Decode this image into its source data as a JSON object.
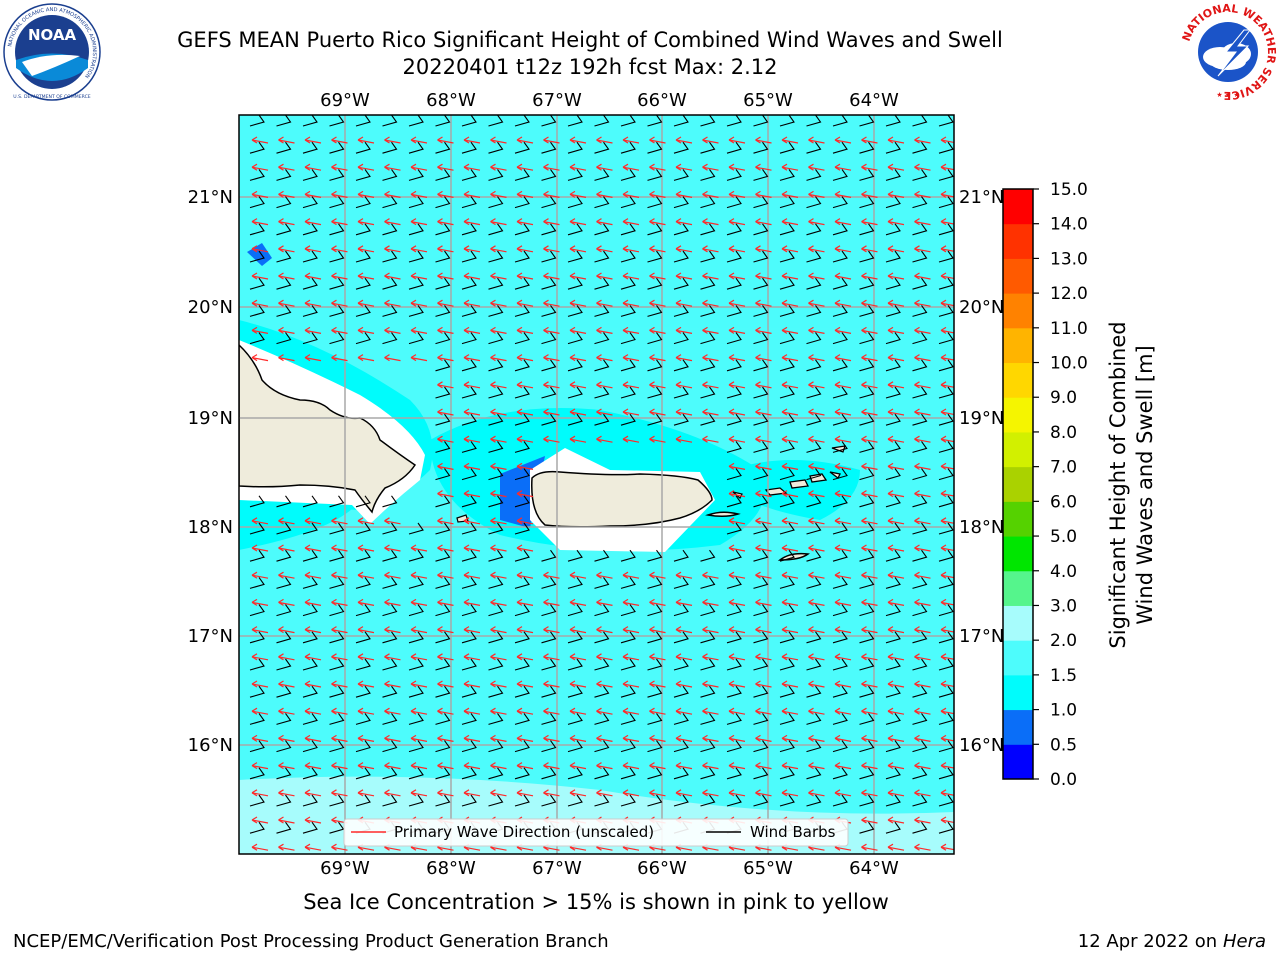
{
  "header": {
    "title_line1": "GEFS MEAN Puerto Rico Significant Height of Combined Wind Waves and Swell",
    "title_line2": "20220401 t12z 192h fcst   Max: 2.12"
  },
  "logos": {
    "left_ring_text": "NATIONAL OCEANIC AND ATMOSPHERIC ADMINISTRATION",
    "left_bottom_text": "U.S. DEPARTMENT OF COMMERCE",
    "left_center": "NOAA",
    "right_ring_text": "NATIONAL WEATHER SERVICE"
  },
  "map": {
    "lon_labels": [
      "69°W",
      "68°W",
      "67°W",
      "66°W",
      "65°W",
      "64°W"
    ],
    "lat_labels": [
      "21°N",
      "20°N",
      "19°N",
      "18°N",
      "17°N",
      "16°N"
    ],
    "colors": {
      "ocean_main": "#4dfcfc",
      "ocean_low": "#00fcfc",
      "ocean_high": "#a7fcfc",
      "land": "#efecdc",
      "coast_white": "#ffffff",
      "wave_arrow": "#ff2a2a",
      "barb": "#000000"
    }
  },
  "legend": {
    "wave_label": "Primary Wave Direction (unscaled)",
    "barb_label": "Wind Barbs"
  },
  "colorbar": {
    "label_line1": "Significant Height of Combined",
    "label_line2": "Wind Waves and Swell [m]",
    "ticks": [
      "0.0",
      "0.5",
      "1.0",
      "1.5",
      "2.0",
      "3.0",
      "4.0",
      "5.0",
      "6.0",
      "7.0",
      "8.0",
      "9.0",
      "10.0",
      "11.0",
      "12.0",
      "13.0",
      "14.0",
      "15.0"
    ],
    "colors": [
      "#0000ff",
      "#0a6ef8",
      "#00fcfc",
      "#4dfcfc",
      "#a7fcfc",
      "#55f58c",
      "#00e600",
      "#55d200",
      "#aad200",
      "#d2f000",
      "#f5f500",
      "#ffd700",
      "#ffb400",
      "#ff8200",
      "#ff5a00",
      "#ff3200",
      "#ff0000"
    ]
  },
  "caption": "Sea Ice Concentration > 15% is shown in pink to yellow",
  "footer": {
    "left": "NCEP/EMC/Verification Post Processing Product Generation Branch",
    "right_date": "12 Apr 2022 on ",
    "right_host": "Hera"
  }
}
